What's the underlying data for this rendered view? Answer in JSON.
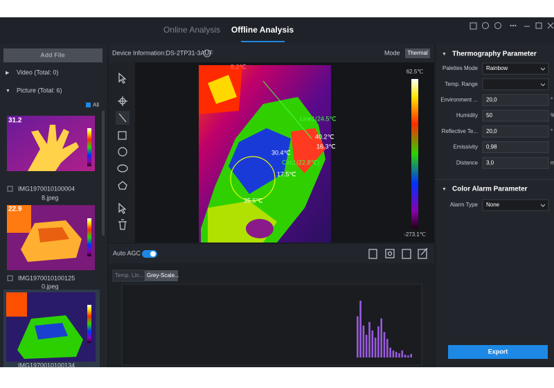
{
  "tabs": [
    "Online Analysis",
    "Offline Analysis"
  ],
  "file_panel": {
    "add_button": "Add File",
    "video": "Video (Total: 0)",
    "picture": "Picture (Total: 6)",
    "select_all": "All",
    "thumbnails": [
      {
        "overlay": "31.2",
        "name_lines": [
          "IMG1970010100004",
          "8.jpeg"
        ]
      },
      {
        "overlay": "22.9",
        "name_lines": [
          "IMG1970010100125",
          "0.jpeg"
        ]
      },
      {
        "name_lines": [
          "IMG1970010100134"
        ]
      }
    ]
  },
  "viewer": {
    "device_info": "Device Information:DS-2TP31-3AUF",
    "mode_label": "Mode",
    "mode_value": "Thermal",
    "scale_max": "62.5℃",
    "scale_min": "-273.1℃",
    "annotations": [
      "8.2℃",
      "Line1(24.5℃",
      "40.2℃",
      "16.3℃",
      "30.4℃",
      "Circ1(22.8℃)",
      "17.5℃",
      "35.6℃"
    ],
    "auto_agc": "Auto AGC"
  },
  "histogram": {
    "tabs": [
      "Temp. Lin...",
      "Grey-Scale..."
    ],
    "bars": [
      58,
      80,
      45,
      32,
      50,
      38,
      28,
      44,
      55,
      36,
      26,
      14,
      10,
      8,
      6,
      10,
      4,
      3,
      5
    ]
  },
  "parameters": {
    "title": "Thermography Parameter",
    "fields": [
      {
        "label": "Palettes Mode",
        "value": "Rainbow"
      },
      {
        "label": "Temp. Range"
      },
      {
        "label": "Environment ...",
        "value": "20,0",
        "unit": "°"
      },
      {
        "label": "Humidity",
        "value": "50",
        "unit": "%"
      },
      {
        "label": "Reflective Te...",
        "value": "20,0",
        "unit": "°"
      },
      {
        "label": "Emissivity",
        "value": "0,98"
      },
      {
        "label": "Distance",
        "value": "3,0",
        "unit": "m"
      }
    ],
    "alarm_title": "Color Alarm Parameter",
    "alarm_field": {
      "label": "Alarm Type",
      "value": "None"
    },
    "export": "Export"
  }
}
